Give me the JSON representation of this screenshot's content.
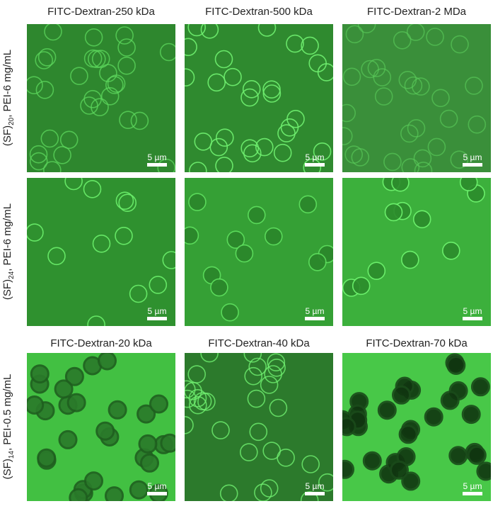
{
  "column_titles_top": [
    "FITC-Dextran-250  kDa",
    "FITC-Dextran-500  kDa",
    "FITC-Dextran-2  MDa"
  ],
  "column_titles_bottom": [
    "FITC-Dextran-20  kDa",
    "FITC-Dextran-40  kDa",
    "FITC-Dextran-70  kDa"
  ],
  "row_labels": [
    {
      "main": "(SF)",
      "sub": "20",
      "rest": ", PEI-6 mg/mL"
    },
    {
      "main": "(SF)",
      "sub": "24",
      "rest": ", PEI-6 mg/mL"
    },
    {
      "main": "(SF)",
      "sub": "14",
      "rest": ", PEI-0.5 mg/mL"
    }
  ],
  "scale_bar_label": "5 µm",
  "colors": {
    "bg_dark": "#2e872e",
    "ring_bright": "#66e866",
    "bg_bright": "#3fbf3f",
    "cell_dark": "#1e5a1e"
  }
}
